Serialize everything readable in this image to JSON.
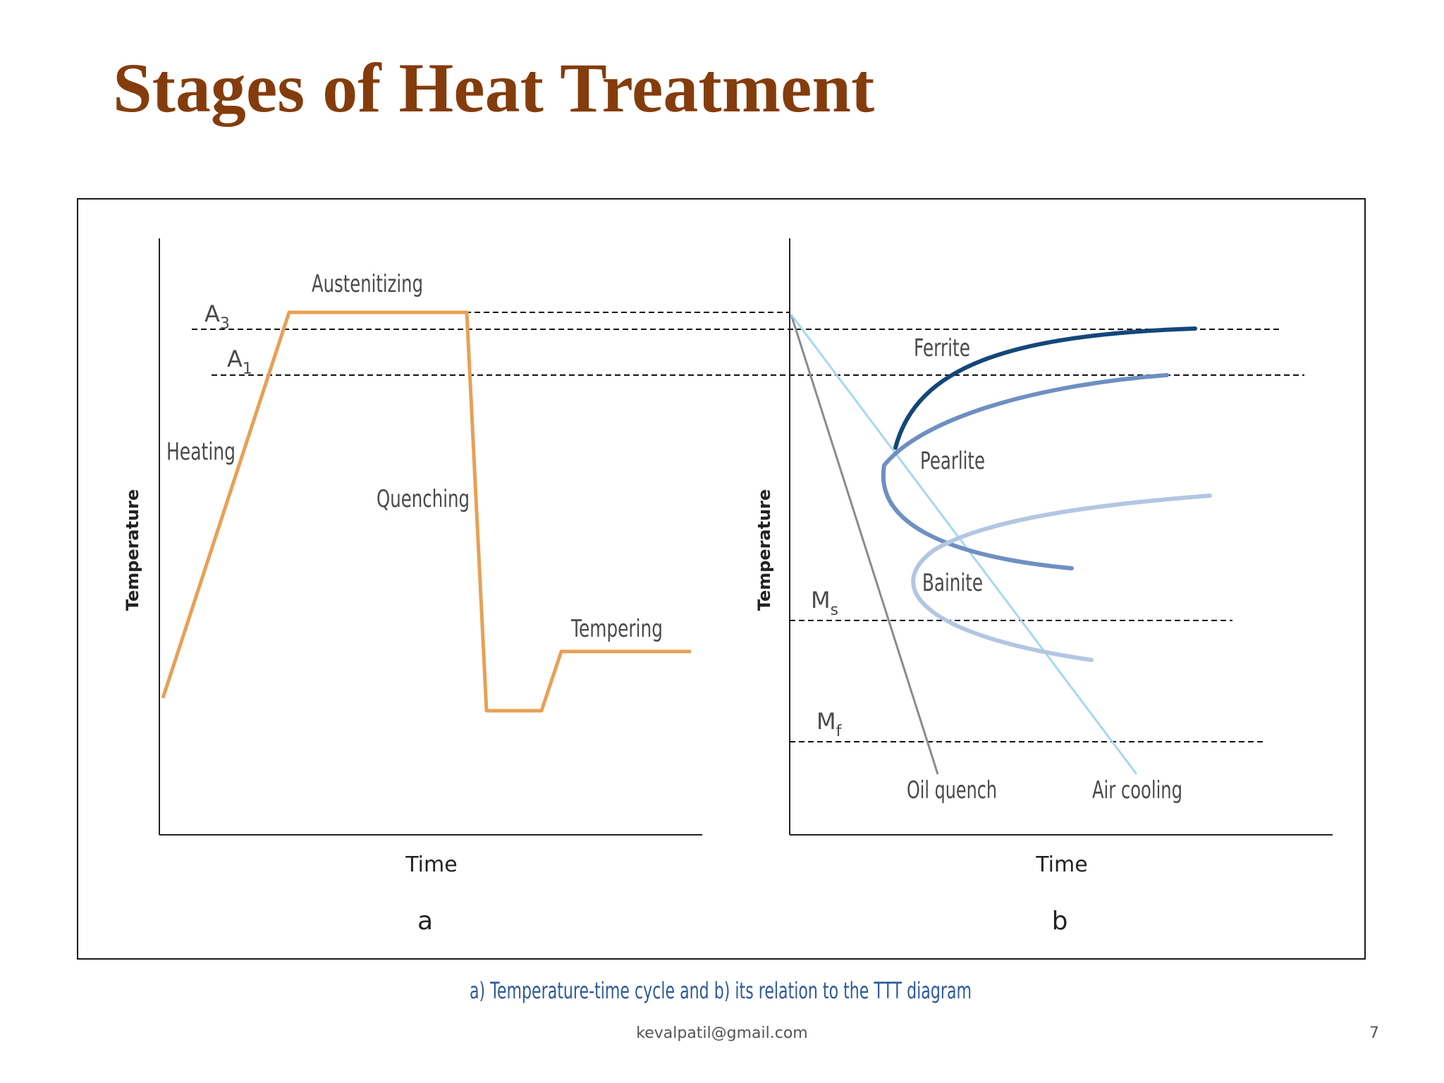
{
  "slide": {
    "title": "Stages of Heat Treatment",
    "footer_email": "kevalpatil@gmail.com",
    "page_number": "7"
  },
  "figure": {
    "caption": "a) Temperature-time cycle and  b) its relation to the TTT diagram",
    "panel_a": {
      "panel_label": "a",
      "xlabel": "Time",
      "ylabel": "Temperature",
      "lines": {
        "a3": "A",
        "a3_sub": "3",
        "a1": "A",
        "a1_sub": "1"
      },
      "stages": {
        "heating": "Heating",
        "austenitizing": "Austenitizing",
        "quenching": "Quenching",
        "tempering": "Tempering"
      }
    },
    "panel_b": {
      "panel_label": "b",
      "xlabel": "Time",
      "ylabel": "Temperature",
      "lines": {
        "ms": "M",
        "ms_sub": "s",
        "mf": "M",
        "mf_sub": "f"
      },
      "phases": {
        "ferrite": "Ferrite",
        "pearlite": "Pearlite",
        "bainite": "Bainite"
      },
      "cooling_curves": {
        "oil_quench": "Oil quench",
        "air_cooling": "Air cooling"
      }
    },
    "colors": {
      "cycle_line": "#e8a054",
      "ferrite_curve": "#13477a",
      "pearlite_curve": "#6f8fc2",
      "bainite_curve": "#b3c6e2",
      "oil_quench_line": "#8a8a92",
      "air_cooling_line": "#a9d8ec",
      "title": "#843c0c",
      "caption": "#2e5a9c"
    }
  }
}
